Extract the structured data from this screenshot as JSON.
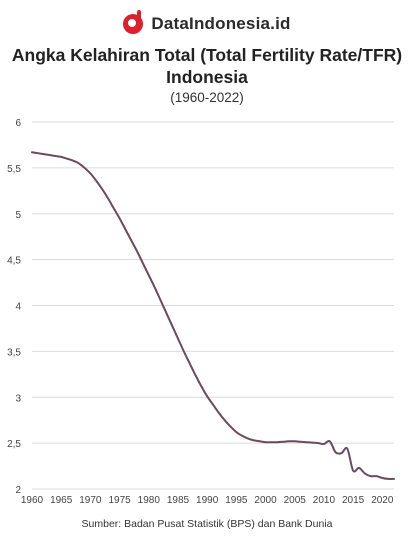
{
  "brand": {
    "name": "DataIndonesia.id",
    "logo_icon": "dataindonesia-logo-icon",
    "logo_color": "#e01f2d"
  },
  "header": {
    "title_line1": "Angka Kelahiran Total (Total Fertility Rate/TFR)",
    "title_line2": "Indonesia",
    "subtitle": "(1960-2022)"
  },
  "footer": {
    "source": "Sumber: Badan Pusat Statistik (BPS) dan Bank Dunia"
  },
  "chart_data": {
    "type": "line",
    "title": "Angka Kelahiran Total (Total Fertility Rate/TFR) Indonesia",
    "subtitle": "(1960-2022)",
    "xlabel": "",
    "ylabel": "",
    "xlim": [
      1960,
      2022
    ],
    "ylim": [
      2,
      6
    ],
    "grid": true,
    "line_color": "#6b4a5e",
    "x_ticks": [
      1960,
      1965,
      1970,
      1975,
      1980,
      1985,
      1990,
      1995,
      2000,
      2005,
      2010,
      2015,
      2020
    ],
    "y_ticks": [
      2,
      2.5,
      3,
      3.5,
      4,
      4.5,
      5,
      5.5,
      6
    ],
    "y_tick_labels": [
      "2",
      "2,5",
      "3",
      "3,5",
      "4",
      "4,5",
      "5",
      "5,5",
      "6"
    ],
    "series": [
      {
        "x": [
          1960,
          1961,
          1962,
          1963,
          1964,
          1965,
          1966,
          1967,
          1968,
          1969,
          1970,
          1971,
          1972,
          1973,
          1974,
          1975,
          1976,
          1977,
          1978,
          1979,
          1980,
          1981,
          1982,
          1983,
          1984,
          1985,
          1986,
          1987,
          1988,
          1989,
          1990,
          1991,
          1992,
          1993,
          1994,
          1995,
          1996,
          1997,
          1998,
          1999,
          2000,
          2001,
          2002,
          2003,
          2004,
          2005,
          2006,
          2007,
          2008,
          2009,
          2010,
          2011,
          2012,
          2013,
          2014,
          2015,
          2016,
          2017,
          2018,
          2019,
          2020,
          2021,
          2022
        ],
        "values": [
          5.67,
          5.66,
          5.65,
          5.64,
          5.63,
          5.62,
          5.6,
          5.58,
          5.55,
          5.5,
          5.44,
          5.36,
          5.27,
          5.17,
          5.06,
          4.95,
          4.83,
          4.71,
          4.59,
          4.46,
          4.33,
          4.2,
          4.06,
          3.92,
          3.78,
          3.64,
          3.5,
          3.37,
          3.24,
          3.12,
          3.01,
          2.92,
          2.83,
          2.75,
          2.68,
          2.62,
          2.58,
          2.55,
          2.53,
          2.52,
          2.51,
          2.51,
          2.51,
          2.515,
          2.52,
          2.52,
          2.515,
          2.51,
          2.505,
          2.5,
          2.49,
          2.52,
          2.4,
          2.39,
          2.44,
          2.2,
          2.23,
          2.17,
          2.14,
          2.14,
          2.12,
          2.11,
          2.11
        ]
      }
    ]
  }
}
